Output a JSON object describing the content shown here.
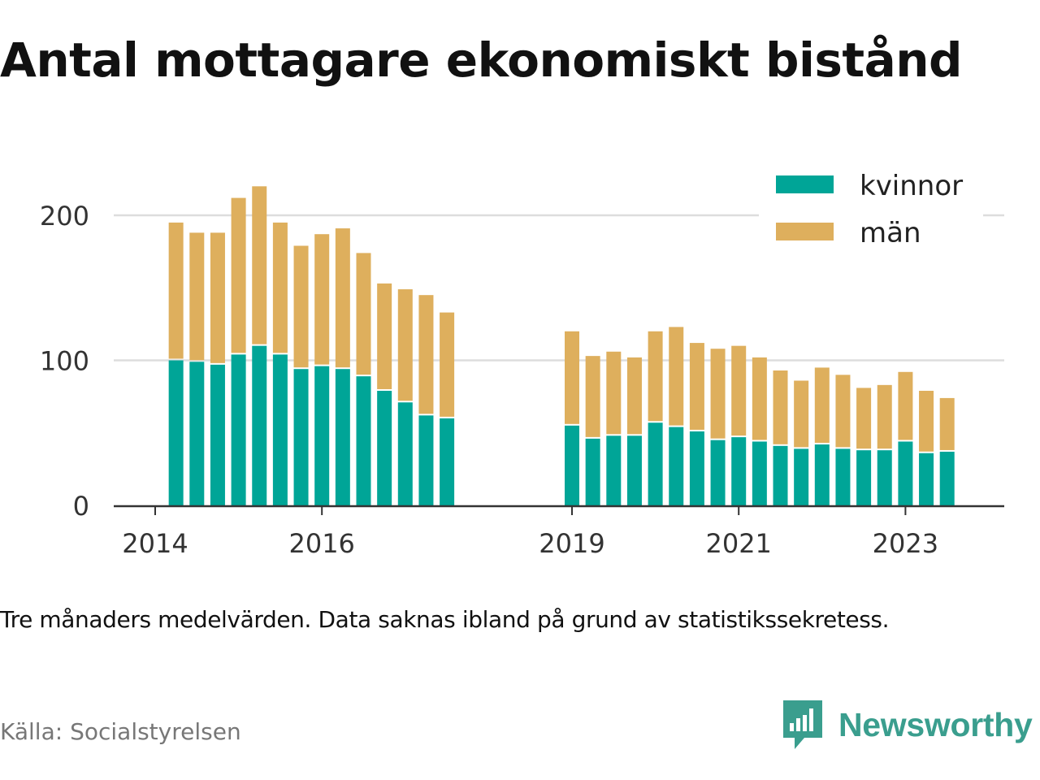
{
  "title": "Antal mottagare ekonomiskt bistånd",
  "note": "Tre månaders medelvärden. Data saknas ibland på grund av statistikssekretess.",
  "source": "Källa: Socialstyrelsen",
  "brand": {
    "name": "Newsworthy",
    "icon": "newsworthy-logo-icon",
    "color": "#3a9e8e"
  },
  "colors": {
    "kvinnor": "#00a597",
    "man": "#deaf5d",
    "grid": "#dddddd",
    "axis": "#333333"
  },
  "chart_data": {
    "type": "bar",
    "stacked": true,
    "title": "Antal mottagare ekonomiskt bistånd",
    "xlabel": "",
    "ylabel": "",
    "ylim": [
      0,
      220
    ],
    "xlim": [
      2013.75,
      2024.0
    ],
    "grid": true,
    "legend": "top-right",
    "x_ticks": [
      2014,
      2016,
      2019,
      2021,
      2023
    ],
    "y_ticks": [
      0,
      100,
      200
    ],
    "x": [
      2014.25,
      2014.5,
      2014.75,
      2015.0,
      2015.25,
      2015.5,
      2015.75,
      2016.0,
      2016.25,
      2016.5,
      2016.75,
      2017.0,
      2017.25,
      2017.5,
      2019.0,
      2019.25,
      2019.5,
      2019.75,
      2020.0,
      2020.25,
      2020.5,
      2020.75,
      2021.0,
      2021.25,
      2021.5,
      2021.75,
      2022.0,
      2022.25,
      2022.5,
      2022.75,
      2023.0,
      2023.25,
      2023.5
    ],
    "series": [
      {
        "name": "kvinnor",
        "values": [
          100,
          99,
          97,
          104,
          110,
          104,
          94,
          96,
          94,
          89,
          79,
          71,
          62,
          60,
          55,
          46,
          48,
          48,
          57,
          54,
          51,
          45,
          47,
          44,
          41,
          39,
          42,
          39,
          38,
          38,
          44,
          36,
          37
        ]
      },
      {
        "name": "män",
        "values": [
          95,
          89,
          91,
          108,
          110,
          91,
          85,
          91,
          97,
          85,
          74,
          78,
          83,
          73,
          65,
          57,
          58,
          54,
          63,
          69,
          61,
          63,
          63,
          58,
          52,
          47,
          53,
          51,
          43,
          45,
          48,
          43,
          37
        ]
      }
    ]
  }
}
